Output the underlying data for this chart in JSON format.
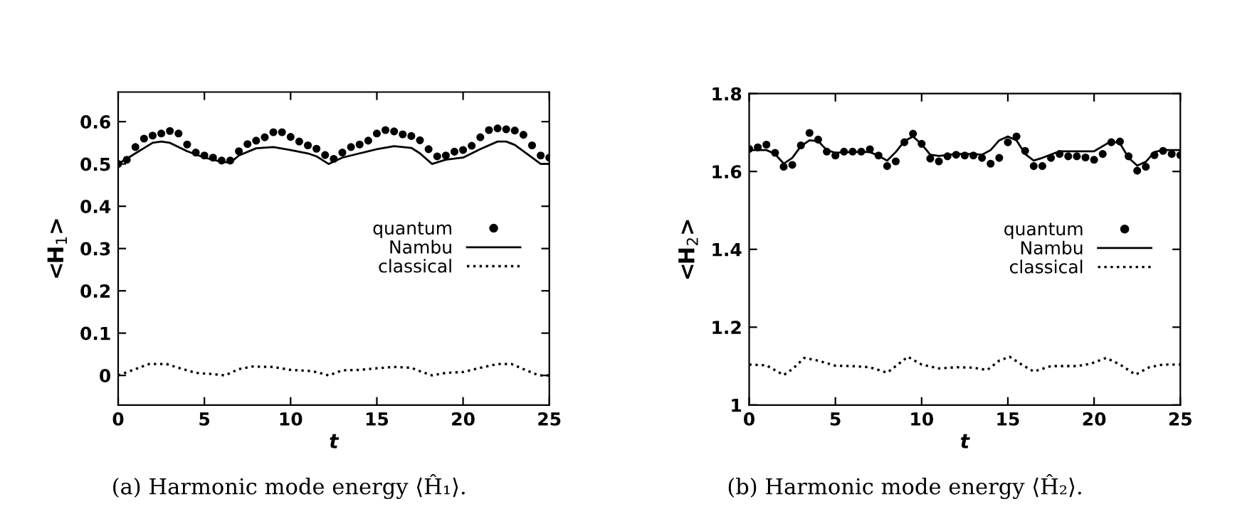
{
  "chart_data": [
    {
      "type": "line",
      "xlabel": "t",
      "ylabel": "<H$_{1}$>",
      "xlim": [
        0,
        25
      ],
      "ylim": [
        -0.07,
        0.67
      ],
      "xticks": [
        0,
        5,
        10,
        15,
        20,
        25
      ],
      "yticks": [
        0,
        0.1,
        0.2,
        0.3,
        0.4,
        0.5,
        0.6
      ],
      "grid": false,
      "legend": "right",
      "annotations": [
        "(a) Harmonic mode energy ⟨Ĥ₁⟩."
      ],
      "series": [
        {
          "name": "quantum",
          "type": "scatter",
          "marker": "circle",
          "color": "#000000",
          "x": [
            0,
            0.5,
            1,
            1.5,
            2,
            2.5,
            3,
            3.5,
            4,
            4.5,
            5,
            5.5,
            6,
            6.5,
            7,
            7.5,
            8,
            8.5,
            9,
            9.5,
            10,
            10.5,
            11,
            11.5,
            12,
            12.5,
            13,
            13.5,
            14,
            14.5,
            15,
            15.5,
            16,
            16.5,
            17,
            17.5,
            18,
            18.5,
            19,
            19.5,
            20,
            20.5,
            21,
            21.5,
            22,
            22.5,
            23,
            23.5,
            24,
            24.5,
            25
          ],
          "values": [
            0.5,
            0.51,
            0.54,
            0.56,
            0.567,
            0.572,
            0.578,
            0.572,
            0.546,
            0.527,
            0.52,
            0.515,
            0.508,
            0.508,
            0.53,
            0.547,
            0.555,
            0.563,
            0.575,
            0.575,
            0.564,
            0.553,
            0.544,
            0.536,
            0.521,
            0.512,
            0.527,
            0.54,
            0.546,
            0.555,
            0.572,
            0.58,
            0.577,
            0.57,
            0.566,
            0.556,
            0.535,
            0.518,
            0.52,
            0.529,
            0.533,
            0.543,
            0.563,
            0.58,
            0.584,
            0.582,
            0.579,
            0.569,
            0.544,
            0.52,
            0.515
          ]
        },
        {
          "name": "Nambu",
          "line_style": "solid",
          "color": "#000000",
          "x": [
            0,
            1,
            2,
            2.5,
            3,
            4,
            5,
            6,
            6.5,
            7,
            8,
            9,
            10,
            11,
            11.5,
            12.2,
            13,
            14,
            15,
            16,
            17,
            17.5,
            18.2,
            19,
            20,
            21,
            22,
            22.5,
            23,
            24,
            24.5,
            25
          ],
          "values": [
            0.5,
            0.525,
            0.55,
            0.553,
            0.55,
            0.53,
            0.515,
            0.505,
            0.503,
            0.52,
            0.537,
            0.54,
            0.533,
            0.525,
            0.518,
            0.5,
            0.515,
            0.525,
            0.535,
            0.542,
            0.538,
            0.525,
            0.5,
            0.51,
            0.515,
            0.535,
            0.553,
            0.553,
            0.545,
            0.515,
            0.5,
            0.5
          ]
        },
        {
          "name": "classical",
          "line_style": "dotted",
          "color": "#000000",
          "x": [
            0,
            1,
            1.8,
            2.8,
            3.5,
            4.5,
            5.5,
            6.2,
            7,
            7.8,
            9,
            10,
            11,
            11.5,
            12.2,
            13,
            14,
            15,
            16,
            17,
            17.5,
            18.2,
            19,
            20,
            21,
            22,
            22.8,
            23.5,
            24.4,
            25
          ],
          "values": [
            0,
            0.015,
            0.027,
            0.027,
            0.018,
            0.006,
            0.003,
            0,
            0.015,
            0.021,
            0.02,
            0.013,
            0.011,
            0.008,
            0,
            0.012,
            0.013,
            0.017,
            0.02,
            0.018,
            0.01,
            0,
            0.006,
            0.008,
            0.018,
            0.027,
            0.027,
            0.015,
            0,
            0
          ]
        }
      ]
    },
    {
      "type": "line",
      "xlabel": "t",
      "ylabel": "<H$_{2}$>",
      "xlim": [
        0,
        25
      ],
      "ylim": [
        1,
        1.8
      ],
      "xticks": [
        0,
        5,
        10,
        15,
        20,
        25
      ],
      "yticks": [
        1,
        1.2,
        1.4,
        1.6,
        1.8
      ],
      "grid": false,
      "legend": "right",
      "annotations": [
        "(b) Harmonic mode energy ⟨Ĥ₂⟩."
      ],
      "series": [
        {
          "name": "quantum",
          "type": "scatter",
          "marker": "circle",
          "color": "#000000",
          "x": [
            0,
            0.5,
            1,
            1.5,
            2,
            2.5,
            3,
            3.5,
            4,
            4.5,
            5,
            5.5,
            6,
            6.5,
            7,
            7.5,
            8,
            8.5,
            9,
            9.5,
            10,
            10.5,
            11,
            11.5,
            12,
            12.5,
            13,
            13.5,
            14,
            14.5,
            15,
            15.5,
            16,
            16.5,
            17,
            17.5,
            18,
            18.5,
            19,
            19.5,
            20,
            20.5,
            21,
            21.5,
            22,
            22.5,
            23,
            23.5,
            24,
            24.5,
            25
          ],
          "values": [
            1.658,
            1.662,
            1.669,
            1.648,
            1.612,
            1.617,
            1.667,
            1.699,
            1.682,
            1.651,
            1.641,
            1.651,
            1.651,
            1.651,
            1.657,
            1.641,
            1.614,
            1.626,
            1.675,
            1.697,
            1.671,
            1.633,
            1.626,
            1.639,
            1.643,
            1.641,
            1.641,
            1.635,
            1.62,
            1.635,
            1.675,
            1.69,
            1.653,
            1.614,
            1.614,
            1.635,
            1.645,
            1.639,
            1.639,
            1.636,
            1.63,
            1.645,
            1.675,
            1.677,
            1.639,
            1.602,
            1.612,
            1.642,
            1.653,
            1.645,
            1.642
          ]
        },
        {
          "name": "Nambu",
          "line_style": "solid",
          "color": "#000000",
          "x": [
            0,
            1,
            1.5,
            2,
            2.5,
            3,
            3.5,
            4,
            4.5,
            5,
            6,
            7,
            7.5,
            8,
            8.5,
            9,
            9.5,
            10,
            10.5,
            11,
            12,
            13,
            13.5,
            14,
            14.5,
            15,
            15.5,
            16,
            16.5,
            17,
            18,
            19,
            20,
            20.5,
            21,
            21.5,
            22,
            22.5,
            23,
            23.5,
            24,
            25
          ],
          "values": [
            1.655,
            1.655,
            1.645,
            1.62,
            1.635,
            1.665,
            1.68,
            1.678,
            1.655,
            1.648,
            1.65,
            1.65,
            1.64,
            1.628,
            1.65,
            1.678,
            1.69,
            1.67,
            1.643,
            1.64,
            1.645,
            1.645,
            1.643,
            1.655,
            1.68,
            1.69,
            1.68,
            1.645,
            1.628,
            1.635,
            1.652,
            1.652,
            1.652,
            1.665,
            1.678,
            1.672,
            1.635,
            1.615,
            1.625,
            1.65,
            1.655,
            1.655
          ]
        },
        {
          "name": "classical",
          "line_style": "dotted",
          "color": "#000000",
          "x": [
            0,
            1,
            2,
            2.5,
            3.2,
            4,
            5,
            6,
            7,
            8,
            8.5,
            9.2,
            10,
            11,
            12,
            13,
            13.8,
            14.5,
            15.1,
            15.8,
            16.5,
            17.5,
            19,
            19.8,
            20.7,
            21.5,
            22.4,
            23.2,
            24,
            25
          ],
          "values": [
            1.104,
            1.102,
            1.077,
            1.092,
            1.121,
            1.114,
            1.101,
            1.1,
            1.097,
            1.083,
            1.1,
            1.124,
            1.104,
            1.094,
            1.097,
            1.096,
            1.09,
            1.114,
            1.124,
            1.104,
            1.086,
            1.1,
            1.1,
            1.106,
            1.121,
            1.104,
            1.078,
            1.097,
            1.104,
            1.104
          ]
        }
      ]
    }
  ]
}
